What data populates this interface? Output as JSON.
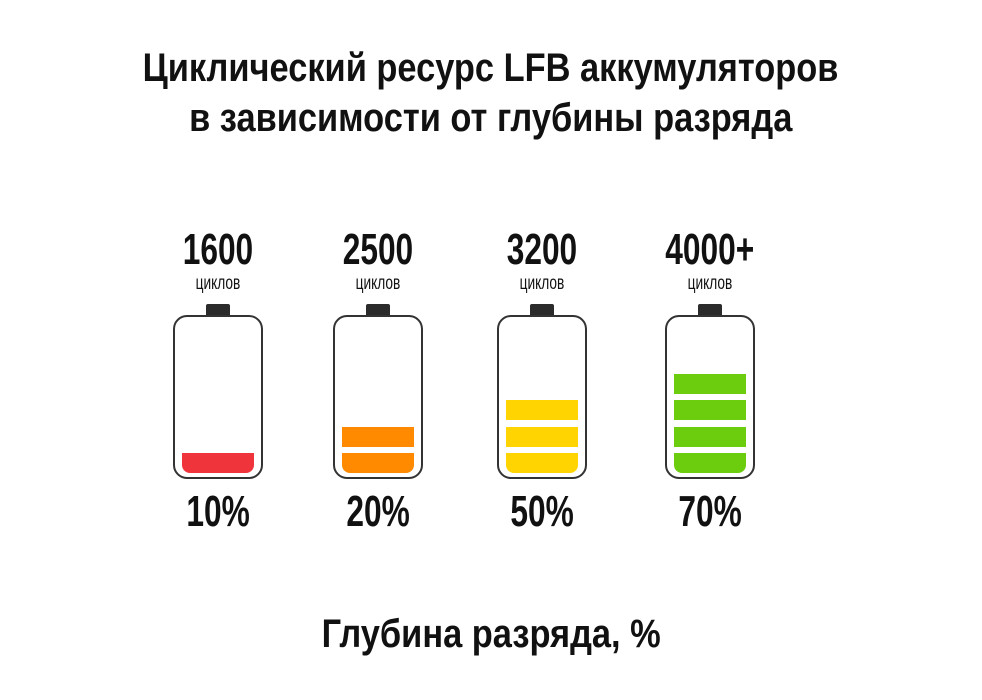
{
  "chart_data": {
    "type": "bar",
    "title_line1": "Циклический ресурс LFB аккумуляторов",
    "title_line2": "в зависимости от глубины разряда",
    "xlabel": "Глубина разряда, %",
    "categories": [
      "10%",
      "20%",
      "50%",
      "70%"
    ],
    "cycle_labels": [
      "1600",
      "2500",
      "3200",
      "4000+"
    ],
    "values": [
      1600,
      2500,
      3200,
      4000
    ],
    "unit": "циклов",
    "fill_segments": [
      1,
      2,
      3,
      4
    ],
    "max_segments": 6,
    "colors": [
      "#f0343c",
      "#ff8a00",
      "#ffd400",
      "#6ccd0e"
    ]
  }
}
